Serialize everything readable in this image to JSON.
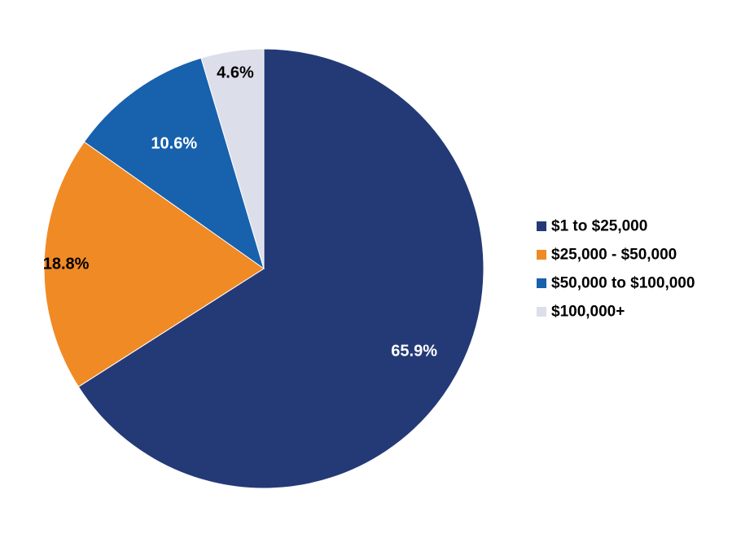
{
  "chart_data": {
    "type": "pie",
    "title": "",
    "categories": [
      "$1 to $25,000",
      "$25,000 - $50,000",
      "$50,000 to $100,000",
      "$100,000+"
    ],
    "values": [
      65.9,
      18.8,
      10.6,
      4.6
    ],
    "value_labels": [
      "65.9%",
      "18.8%",
      "10.6%",
      "4.6%"
    ],
    "colors": [
      "#243a77",
      "#f08a24",
      "#1761ad",
      "#dcdfea"
    ],
    "label_colors": [
      "#ffffff",
      "#000000",
      "#ffffff",
      "#000000"
    ],
    "start_angle": "12 o'clock",
    "direction": "clockwise",
    "legend_position": "right"
  }
}
